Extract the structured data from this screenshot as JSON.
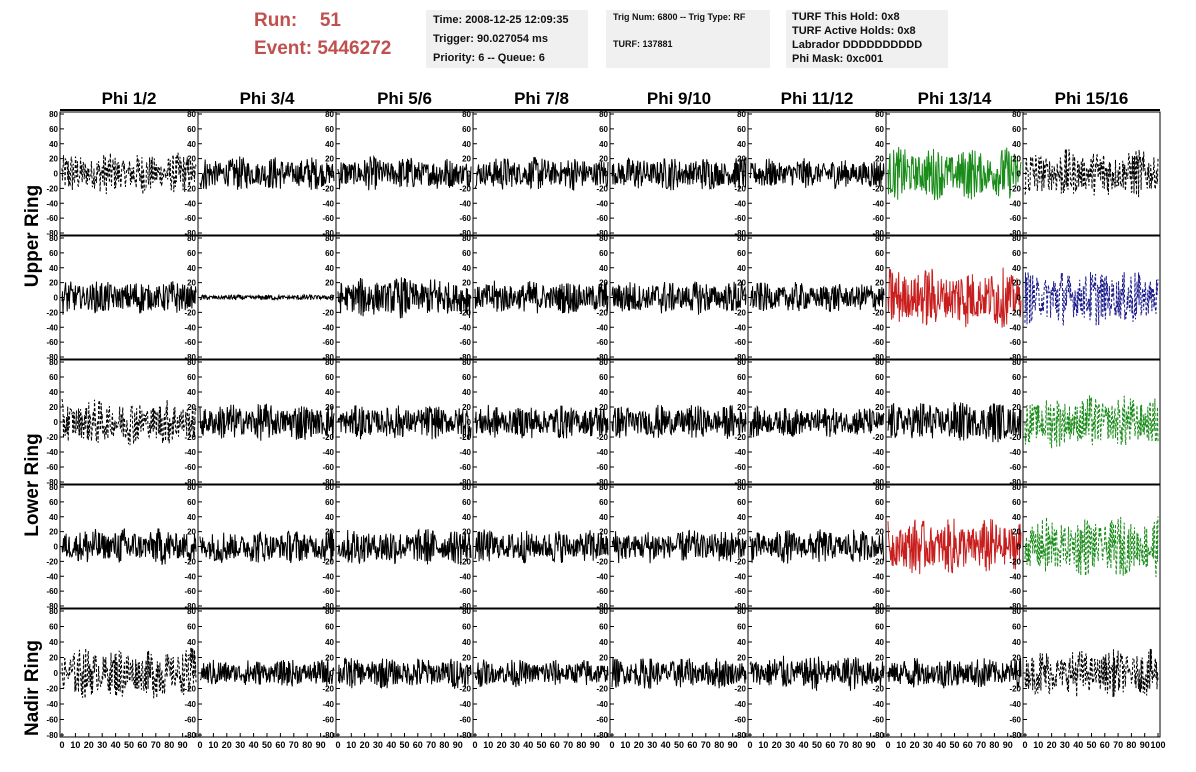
{
  "header": {
    "run_label": "Run:",
    "run_value": "51",
    "event_label": "Event:",
    "event_value": "5446272",
    "time": "Time: 2008-12-25 12:09:35",
    "trigger": "Trigger: 90.027054 ms",
    "priority_queue": "Priority: 6 -- Queue: 6",
    "trig_num_type": "Trig Num: 6800 -- Trig Type: RF",
    "turf": "TURF: 137881",
    "turf_this_hold": "TURF This Hold: 0x8",
    "turf_active_holds": "TURF Active Holds: 0x8",
    "labrador": "Labrador DDDDDDDDDD",
    "phi_mask": "Phi Mask: 0xc001"
  },
  "columns": [
    "Phi 1/2",
    "Phi 3/4",
    "Phi 5/6",
    "Phi 7/8",
    "Phi 9/10",
    "Phi 11/12",
    "Phi 13/14",
    "Phi 15/16"
  ],
  "ring_labels": [
    "Upper Ring",
    "Lower Ring",
    "Nadir Ring"
  ],
  "colors": {
    "header_red": "#c0504d",
    "box_bg": "#f0f0f0",
    "trace_default": "#000000",
    "trace_green": "#1a8c1a",
    "trace_red": "#c81e1e",
    "trace_blue": "#1a1a8c"
  },
  "chart_data": {
    "type": "line",
    "description_units": "waveform amplitude vs time sample",
    "xlim": [
      0,
      100
    ],
    "ylim": [
      -80,
      80
    ],
    "y_ticks": [
      -80,
      -60,
      -40,
      -20,
      0,
      20,
      40,
      60,
      80
    ],
    "x_ticks_label_row": [
      "0",
      "10",
      "20",
      "30",
      "40",
      "50",
      "60",
      "70",
      "80",
      "90",
      "100"
    ],
    "rows": 5,
    "cols": 8,
    "panels": [
      [
        {
          "color": "#000000",
          "style": "dashed",
          "amplitude": 22
        },
        {
          "color": "#000000",
          "style": "solid",
          "amplitude": 18
        },
        {
          "color": "#000000",
          "style": "solid",
          "amplitude": 18
        },
        {
          "color": "#000000",
          "style": "solid",
          "amplitude": 18
        },
        {
          "color": "#000000",
          "style": "solid",
          "amplitude": 18
        },
        {
          "color": "#000000",
          "style": "solid",
          "amplitude": 16
        },
        {
          "color": "#1a8c1a",
          "style": "solid",
          "amplitude": 28
        },
        {
          "color": "#000000",
          "style": "dashed",
          "amplitude": 26
        }
      ],
      [
        {
          "color": "#000000",
          "style": "solid",
          "amplitude": 18
        },
        {
          "color": "#000000",
          "style": "solid",
          "amplitude": 3
        },
        {
          "color": "#000000",
          "style": "solid",
          "amplitude": 22
        },
        {
          "color": "#000000",
          "style": "solid",
          "amplitude": 18
        },
        {
          "color": "#000000",
          "style": "solid",
          "amplitude": 18
        },
        {
          "color": "#000000",
          "style": "solid",
          "amplitude": 16
        },
        {
          "color": "#c81e1e",
          "style": "solid",
          "amplitude": 32
        },
        {
          "color": "#1a1a8c",
          "style": "dashed",
          "amplitude": 30
        }
      ],
      [
        {
          "color": "#000000",
          "style": "dashed",
          "amplitude": 24
        },
        {
          "color": "#000000",
          "style": "solid",
          "amplitude": 20
        },
        {
          "color": "#000000",
          "style": "solid",
          "amplitude": 18
        },
        {
          "color": "#000000",
          "style": "solid",
          "amplitude": 18
        },
        {
          "color": "#000000",
          "style": "solid",
          "amplitude": 18
        },
        {
          "color": "#000000",
          "style": "solid",
          "amplitude": 16
        },
        {
          "color": "#000000",
          "style": "solid",
          "amplitude": 22
        },
        {
          "color": "#1a8c1a",
          "style": "dashed",
          "amplitude": 28
        }
      ],
      [
        {
          "color": "#000000",
          "style": "solid",
          "amplitude": 20
        },
        {
          "color": "#000000",
          "style": "solid",
          "amplitude": 18
        },
        {
          "color": "#000000",
          "style": "solid",
          "amplitude": 20
        },
        {
          "color": "#000000",
          "style": "solid",
          "amplitude": 18
        },
        {
          "color": "#000000",
          "style": "solid",
          "amplitude": 18
        },
        {
          "color": "#000000",
          "style": "solid",
          "amplitude": 18
        },
        {
          "color": "#c81e1e",
          "style": "solid",
          "amplitude": 30
        },
        {
          "color": "#1a8c1a",
          "style": "dashed",
          "amplitude": 32
        }
      ],
      [
        {
          "color": "#000000",
          "style": "dashed",
          "amplitude": 26
        },
        {
          "color": "#000000",
          "style": "solid",
          "amplitude": 14
        },
        {
          "color": "#000000",
          "style": "solid",
          "amplitude": 16
        },
        {
          "color": "#000000",
          "style": "solid",
          "amplitude": 14
        },
        {
          "color": "#000000",
          "style": "solid",
          "amplitude": 16
        },
        {
          "color": "#000000",
          "style": "solid",
          "amplitude": 18
        },
        {
          "color": "#000000",
          "style": "solid",
          "amplitude": 16
        },
        {
          "color": "#000000",
          "style": "dashed",
          "amplitude": 24
        }
      ]
    ]
  }
}
